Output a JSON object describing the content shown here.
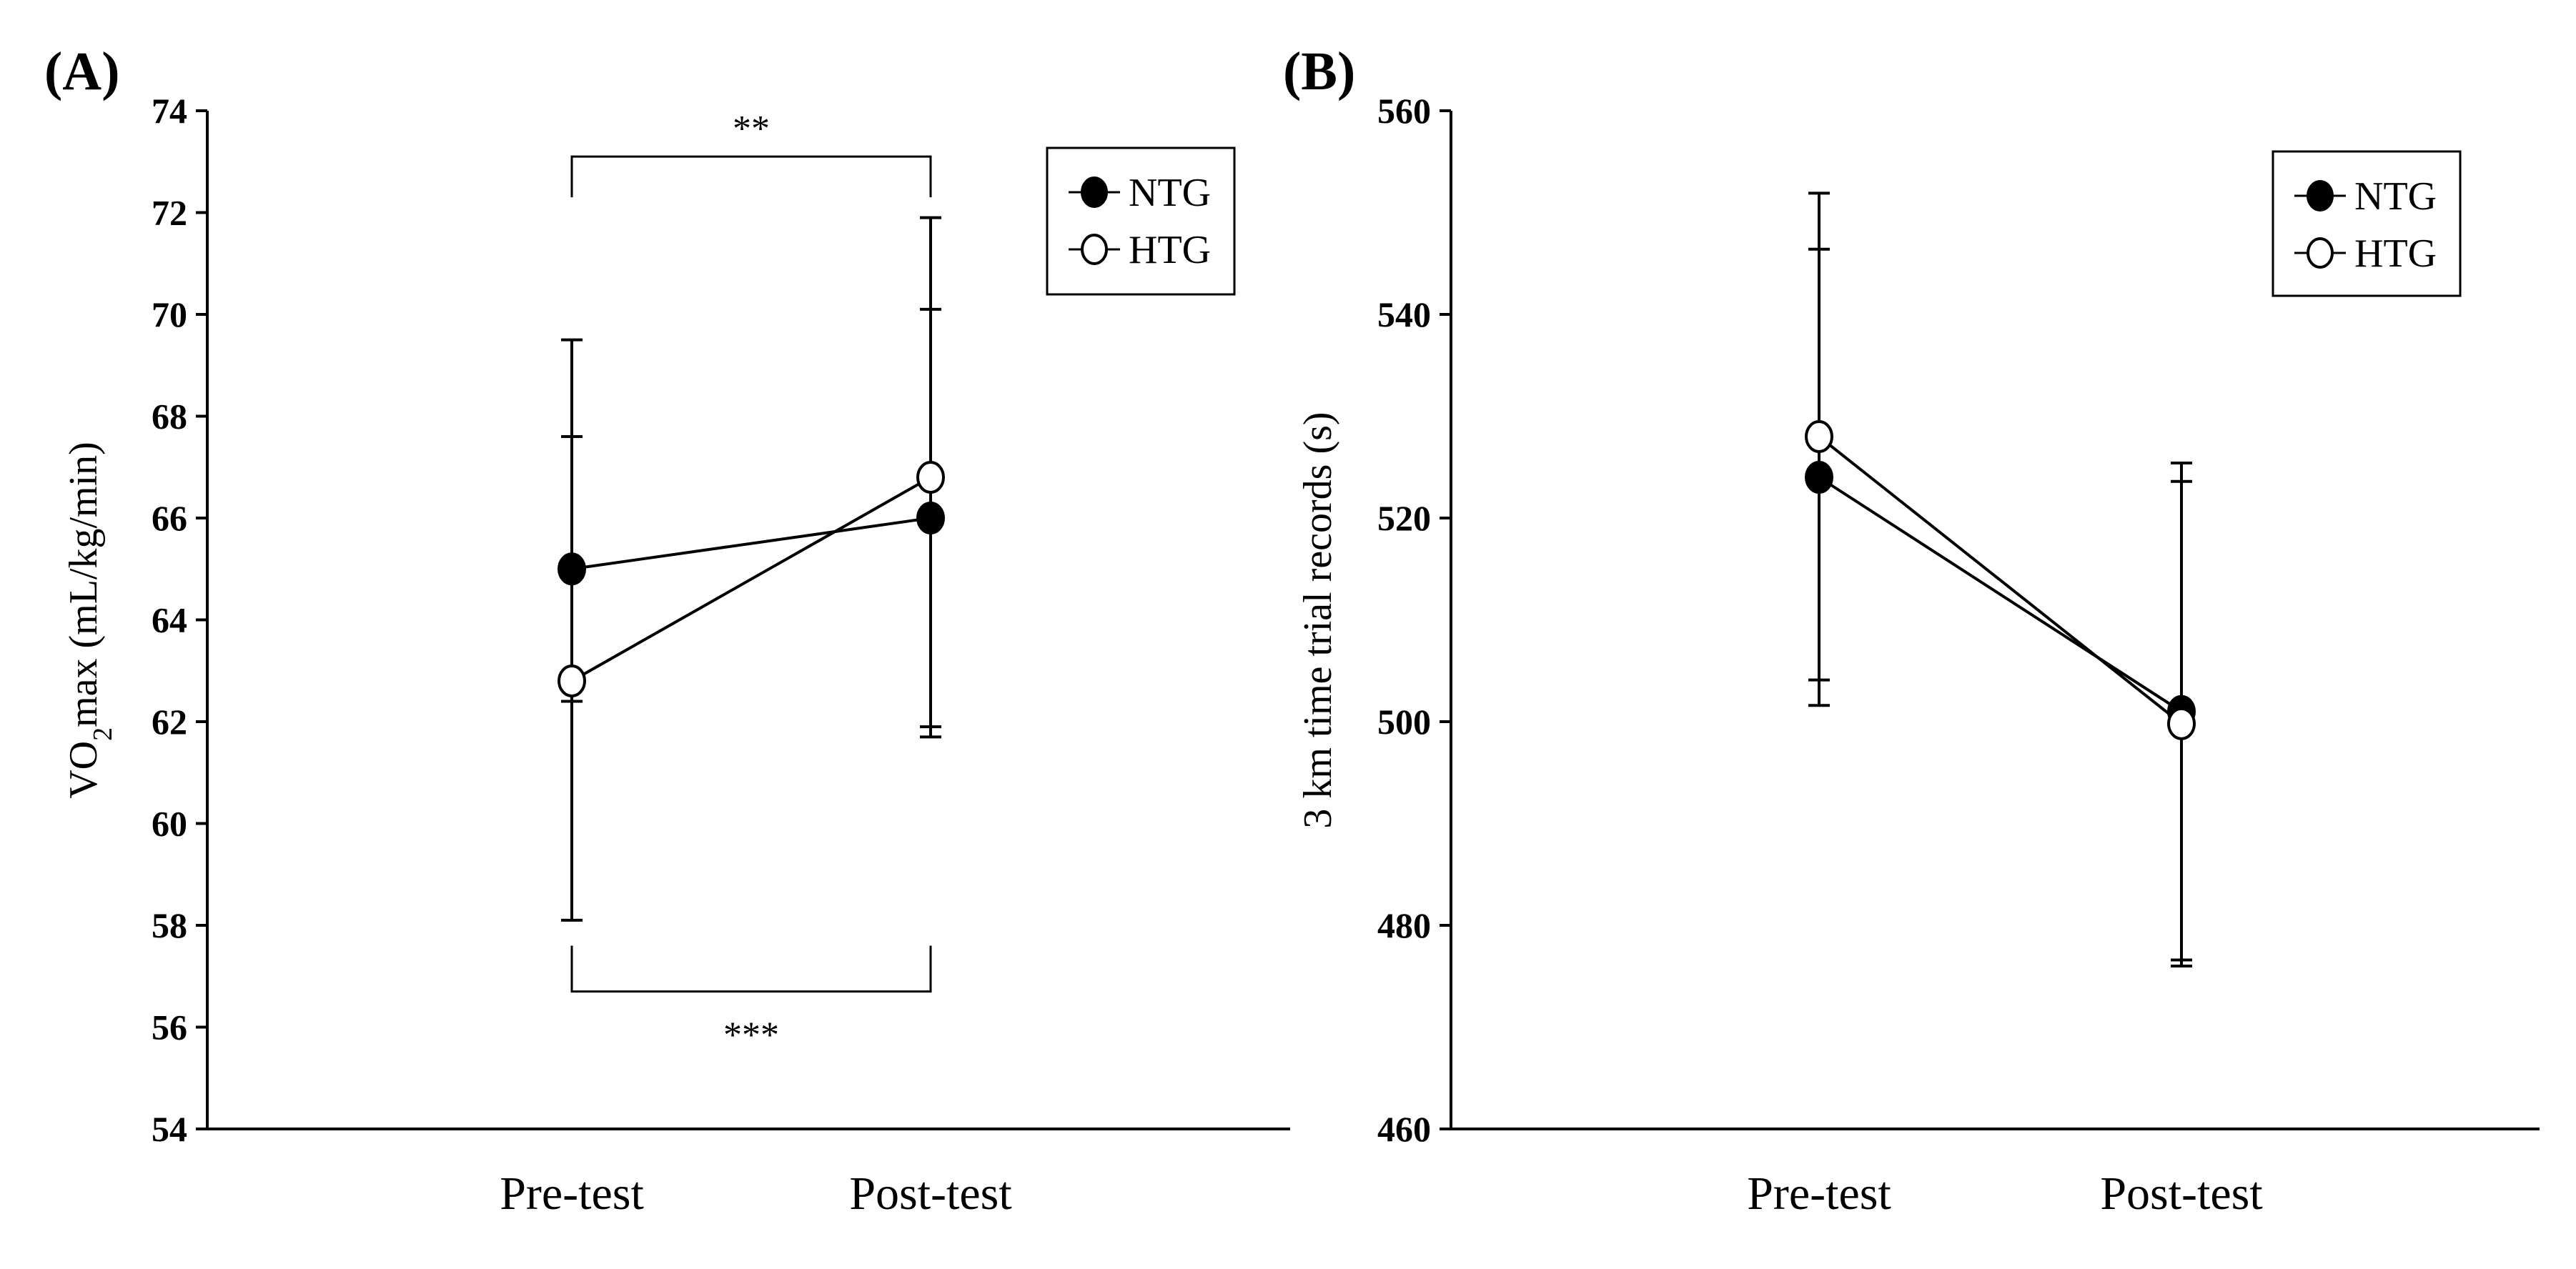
{
  "chart_data": [
    {
      "panel": "(A)",
      "type": "line",
      "title": "",
      "xlabel": "",
      "ylabel": "VO₂max (mL/kg/min)",
      "ylabel_main": "VO",
      "ylabel_subscript": "2",
      "ylabel_rest": "max (mL/kg/min)",
      "categories": [
        "Pre-test",
        "Post-test"
      ],
      "ylim": [
        54,
        74
      ],
      "yticks": [
        54,
        56,
        58,
        60,
        62,
        64,
        66,
        68,
        70,
        72,
        74
      ],
      "series": [
        {
          "name": "NTG",
          "marker": "filled-circle",
          "values": [
            65.0,
            66.0
          ],
          "error_upper": [
            67.6,
            70.1
          ],
          "error_lower": [
            62.4,
            61.9
          ]
        },
        {
          "name": "HTG",
          "marker": "open-circle",
          "values": [
            62.8,
            66.8
          ],
          "error_upper": [
            69.5,
            71.9
          ],
          "error_lower": [
            58.1,
            61.7
          ]
        }
      ],
      "annotations": [
        {
          "label": "**",
          "from": "Pre-test",
          "to": "Post-test",
          "position": "top",
          "bracket_y": 73.1,
          "tick_end": 72.3
        },
        {
          "label": "***",
          "from": "Pre-test",
          "to": "Post-test",
          "position": "bottom",
          "bracket_y": 56.7,
          "tick_end": 57.6
        }
      ],
      "legend": {
        "placement": "top-right",
        "entries": [
          "NTG",
          "HTG"
        ]
      }
    },
    {
      "panel": "(B)",
      "type": "line",
      "title": "",
      "xlabel": "",
      "ylabel": "3 km time trial records (s)",
      "categories": [
        "Pre-test",
        "Post-test"
      ],
      "ylim": [
        460,
        560
      ],
      "yticks": [
        460,
        480,
        500,
        520,
        540,
        560
      ],
      "series": [
        {
          "name": "NTG",
          "marker": "filled-circle",
          "values": [
            524.0,
            501.0
          ],
          "error_upper": [
            546.4,
            525.4
          ],
          "error_lower": [
            501.6,
            476.6
          ]
        },
        {
          "name": "HTG",
          "marker": "open-circle",
          "values": [
            528.0,
            499.8
          ],
          "error_upper": [
            551.9,
            523.6
          ],
          "error_lower": [
            504.1,
            476.0
          ]
        }
      ],
      "annotations": [],
      "legend": {
        "placement": "top-right",
        "entries": [
          "NTG",
          "HTG"
        ]
      }
    }
  ]
}
